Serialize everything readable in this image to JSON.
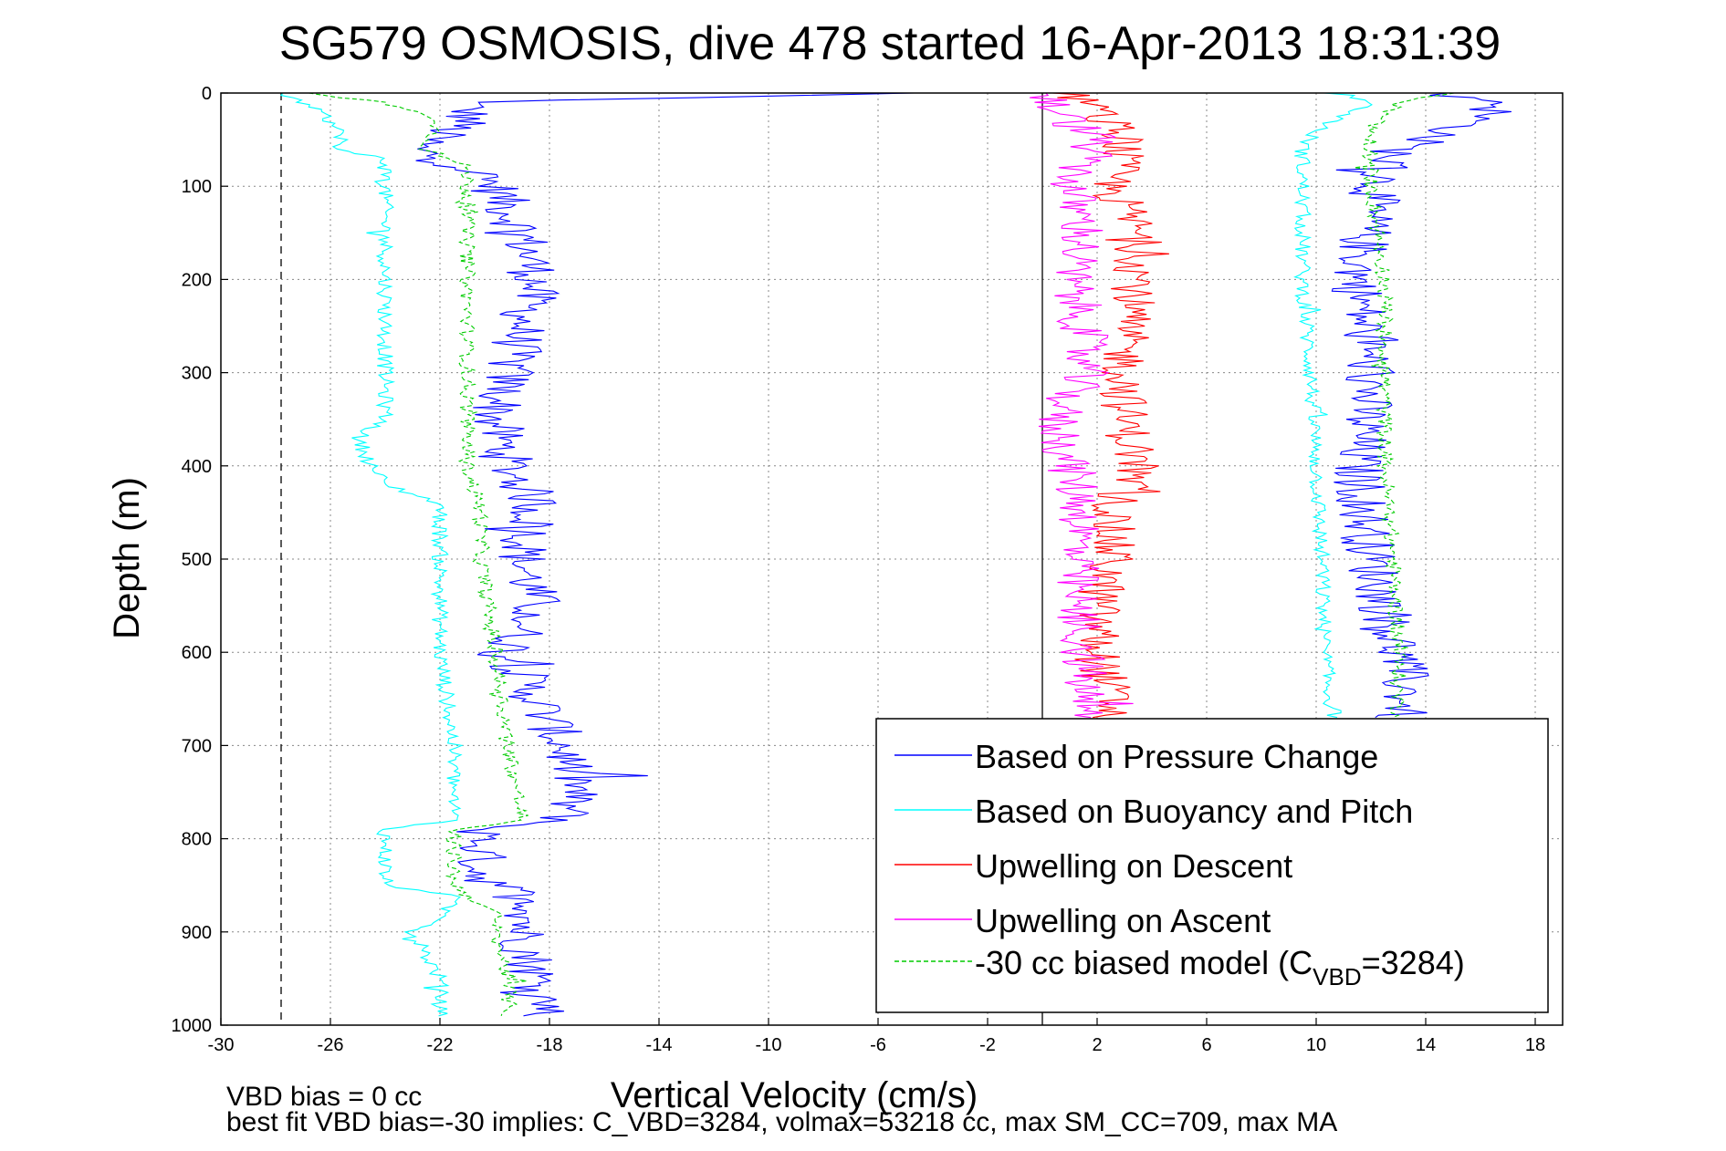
{
  "chart_data": {
    "type": "line",
    "title": "SG579 OSMOSIS, dive 478 started 16-Apr-2013 18:31:39",
    "xlabel": "Vertical Velocity (cm/s)",
    "ylabel": "Depth (m)",
    "xlim": [
      -30,
      19
    ],
    "ylim": [
      1000,
      0
    ],
    "y_reversed": true,
    "grid": true,
    "x_ticks": [
      -30,
      -26,
      -22,
      -18,
      -14,
      -10,
      -6,
      -2,
      2,
      6,
      10,
      14,
      18
    ],
    "x_tick_labels": [
      "-30",
      "-26",
      "-22",
      "-18",
      "-14",
      "-10",
      "-6",
      "-2",
      "2",
      "6",
      "10",
      "14",
      "18"
    ],
    "y_ticks": [
      0,
      100,
      200,
      300,
      400,
      500,
      600,
      700,
      800,
      900,
      1000
    ],
    "y_tick_labels": [
      "0",
      "100",
      "200",
      "300",
      "400",
      "500",
      "600",
      "700",
      "800",
      "900",
      "1000"
    ],
    "reference_lines": [
      {
        "x": -27.8,
        "style": "dashed",
        "color": "#000000"
      },
      {
        "x": 0,
        "style": "solid",
        "color": "#000000"
      }
    ],
    "legend_position": "bottom-right",
    "legend": [
      {
        "label": "Based on Pressure Change",
        "color": "#0000ff",
        "style": "solid"
      },
      {
        "label": "Based on Buoyancy and Pitch",
        "color": "#00ffff",
        "style": "solid"
      },
      {
        "label": "Upwelling on Descent",
        "color": "#ff0000",
        "style": "solid"
      },
      {
        "label": "Upwelling on Ascent",
        "color": "#ff00ff",
        "style": "solid"
      },
      {
        "label": "-30 cc biased model (C",
        "sub": "VBD",
        "suffix": "=3284)",
        "color": "#00cc00",
        "style": "dashed"
      }
    ],
    "series": [
      {
        "name": "Based on Pressure Change",
        "color": "#0000ff",
        "style": "solid",
        "noise": 1.0,
        "depth": [
          0,
          10,
          30,
          60,
          80,
          100,
          150,
          200,
          250,
          300,
          350,
          400,
          440,
          500,
          550,
          600,
          650,
          700,
          740,
          780,
          790,
          840,
          870,
          900,
          950,
          990
        ],
        "velocity": [
          -5,
          -21,
          -21,
          -23,
          -21,
          -20,
          -19,
          -18.5,
          -19,
          -19.5,
          -20,
          -19.5,
          -18.5,
          -19,
          -18.5,
          -19.5,
          -18.5,
          -17.5,
          -17,
          -17.5,
          -20.5,
          -20.5,
          -18.5,
          -19,
          -18.5,
          -18
        ]
      },
      {
        "name": "Based on Pressure Change (ascent)",
        "color": "#0000ff",
        "style": "solid",
        "noise": 1.0,
        "depth": [
          0,
          10,
          40,
          60,
          80,
          120,
          200,
          300,
          400,
          500,
          600,
          650,
          670
        ],
        "velocity": [
          14,
          17,
          15,
          13,
          12.5,
          12,
          11.5,
          12,
          11.5,
          12,
          13,
          13.3,
          13
        ]
      },
      {
        "name": "Based on Buoyancy and Pitch",
        "color": "#00ffff",
        "style": "solid",
        "noise": 0.3,
        "depth": [
          0,
          10,
          30,
          50,
          60,
          70,
          100,
          200,
          300,
          350,
          370,
          400,
          420,
          440,
          500,
          600,
          700,
          780,
          790,
          850,
          860,
          890,
          900,
          950,
          990
        ],
        "velocity": [
          -28,
          -27,
          -26,
          -25.5,
          -26,
          -24,
          -24,
          -24,
          -24,
          -24,
          -25,
          -24.5,
          -24,
          -22,
          -22,
          -22,
          -21.5,
          -21.5,
          -24,
          -24,
          -21.5,
          -22,
          -23,
          -22,
          -22
        ]
      },
      {
        "name": "Based on Buoyancy and Pitch (ascent)",
        "color": "#00ffff",
        "style": "solid",
        "noise": 0.3,
        "depth": [
          0,
          10,
          40,
          60,
          100,
          200,
          300,
          400,
          500,
          600,
          650,
          670
        ],
        "velocity": [
          11,
          12,
          10,
          9.5,
          9.5,
          9.5,
          9.8,
          10,
          10.2,
          10.3,
          10.5,
          10.7
        ]
      },
      {
        "name": "Upwelling on Descent",
        "color": "#ff0000",
        "style": "solid",
        "noise": 0.9,
        "depth": [
          0,
          20,
          50,
          100,
          150,
          200,
          250,
          300,
          350,
          400,
          450,
          500,
          550,
          600,
          650,
          670
        ],
        "velocity": [
          1,
          2,
          3,
          2.5,
          3.5,
          3.5,
          3,
          3,
          3,
          3.5,
          2.5,
          2.5,
          2,
          2,
          2.5,
          2.5
        ]
      },
      {
        "name": "Upwelling on Ascent",
        "color": "#ff00ff",
        "style": "solid",
        "noise": 0.9,
        "depth": [
          0,
          20,
          50,
          100,
          150,
          200,
          250,
          300,
          350,
          400,
          450,
          500,
          550,
          600,
          650,
          670
        ],
        "velocity": [
          0,
          0.5,
          2,
          1,
          1.5,
          1,
          1.5,
          1.5,
          0.5,
          1,
          1.5,
          1.2,
          1.2,
          1.5,
          1.5,
          1.5
        ]
      },
      {
        "name": "-30 cc biased model",
        "color": "#00cc00",
        "style": "dashed",
        "noise": 0.3,
        "depth": [
          0,
          10,
          30,
          60,
          80,
          100,
          200,
          300,
          400,
          450,
          500,
          600,
          700,
          780,
          790,
          850,
          880,
          900,
          950,
          990
        ],
        "velocity": [
          -27,
          -24,
          -22,
          -22.5,
          -21,
          -21,
          -21,
          -21,
          -21,
          -20.5,
          -20.5,
          -20,
          -19.5,
          -19,
          -21.5,
          -21.5,
          -20,
          -20,
          -19.5,
          -19.5
        ]
      },
      {
        "name": "-30 cc biased model (ascent)",
        "color": "#00cc00",
        "style": "dashed",
        "noise": 0.3,
        "depth": [
          0,
          10,
          40,
          60,
          100,
          200,
          300,
          400,
          500,
          600,
          650,
          670
        ],
        "velocity": [
          15,
          13,
          12,
          12,
          12,
          12.5,
          12.5,
          12.5,
          12.8,
          13,
          13,
          13
        ]
      }
    ]
  },
  "footer": {
    "line1": "VBD bias = 0 cc",
    "line2": "best fit VBD bias=-30 implies: C_VBD=3284, volmax=53218 cc, max SM_CC=709, max MA"
  }
}
